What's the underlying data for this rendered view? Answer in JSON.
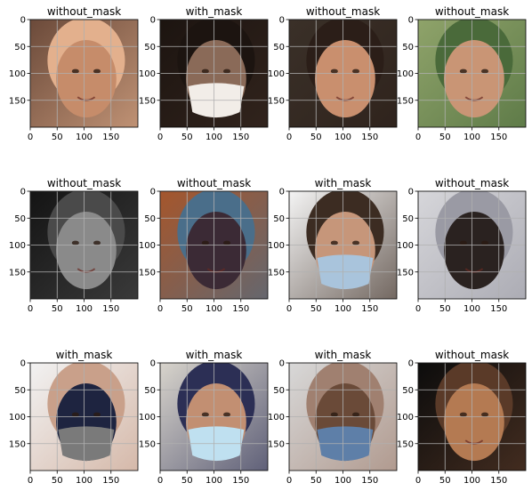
{
  "chart_data": {
    "type": "image_grid",
    "rows": 3,
    "cols": 4,
    "grid": true,
    "xlim": [
      0,
      200
    ],
    "ylim": [
      200,
      0
    ],
    "xticks": [
      0,
      50,
      100,
      150
    ],
    "yticks": [
      0,
      50,
      100,
      150
    ],
    "panels": [
      {
        "title": "without_mask",
        "palette": [
          "#6b4a3a",
          "#c68c6a",
          "#2a1d17",
          "#e3b08d"
        ],
        "mask": false
      },
      {
        "title": "with_mask",
        "palette": [
          "#1c1410",
          "#8a6a58",
          "#f2ede8",
          "#3a2a22"
        ],
        "mask": true
      },
      {
        "title": "without_mask",
        "palette": [
          "#3a3028",
          "#c98f6e",
          "#e0ad8d",
          "#2b1e18"
        ],
        "mask": false
      },
      {
        "title": "without_mask",
        "palette": [
          "#8fa36a",
          "#c99575",
          "#e6d9b8",
          "#4a6a3a"
        ],
        "mask": false
      },
      {
        "title": "without_mask",
        "palette": [
          "#141414",
          "#8a8a8a",
          "#cfcfcf",
          "#4a4a4a"
        ],
        "mask": false
      },
      {
        "title": "without_mask",
        "palette": [
          "#a5562c",
          "#3b2a35",
          "#c99574",
          "#4a6e8a"
        ],
        "mask": false
      },
      {
        "title": "with_mask",
        "palette": [
          "#f4f4f4",
          "#c6967a",
          "#a9c4dc",
          "#3c2c22"
        ],
        "mask": true
      },
      {
        "title": "without_mask",
        "palette": [
          "#d6d6da",
          "#2a2220",
          "#c9a08a",
          "#9a9aa4"
        ],
        "mask": false
      },
      {
        "title": "with_mask",
        "palette": [
          "#f2f2f2",
          "#1e2440",
          "#7a7a7a",
          "#c9a08a"
        ],
        "mask": true
      },
      {
        "title": "with_mask",
        "palette": [
          "#d8d4cc",
          "#c28f72",
          "#bfe0f0",
          "#2c2f55"
        ],
        "mask": true
      },
      {
        "title": "with_mask",
        "palette": [
          "#d8d8d8",
          "#6a4a38",
          "#5e7fa8",
          "#a08070"
        ],
        "mask": true
      },
      {
        "title": "without_mask",
        "palette": [
          "#0c0c0c",
          "#b47a52",
          "#f0e6d8",
          "#5a3a28"
        ],
        "mask": false
      }
    ]
  }
}
